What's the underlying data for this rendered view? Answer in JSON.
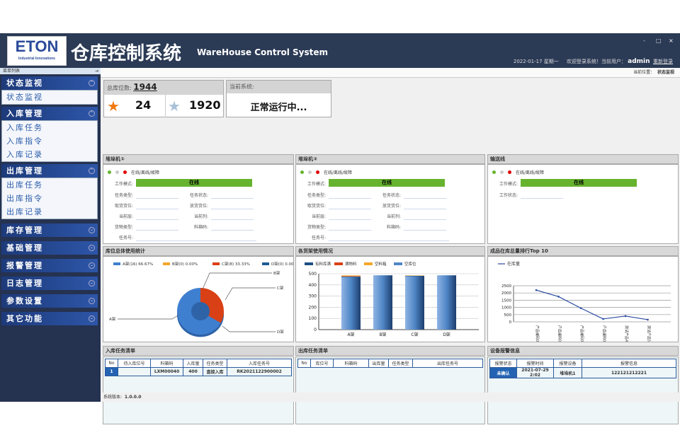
{
  "header": {
    "logo": "ETON",
    "logo_sub": "Industrial Innovations",
    "title": "仓库控制系统",
    "subtitle": "WareHouse Control System",
    "minimize": "-",
    "maximize": "□",
    "close": "×",
    "date": "2022-01-17 星期一",
    "welcome": "欢迎登录系统！当前用户：",
    "user": "admin",
    "relogin": "重新登录"
  },
  "sidebar": {
    "header": "菜单列表",
    "pin": "⇥",
    "groups": [
      {
        "label": "状态监视",
        "expanded": true,
        "items": [
          "状态监视"
        ]
      },
      {
        "label": "入库管理",
        "expanded": true,
        "items": [
          "入库任务",
          "入库指令",
          "入库记录"
        ]
      },
      {
        "label": "出库管理",
        "expanded": true,
        "items": [
          "出库任务",
          "出库指令",
          "出库记录"
        ]
      },
      {
        "label": "库存管理",
        "expanded": false,
        "items": []
      },
      {
        "label": "基础管理",
        "expanded": false,
        "items": []
      },
      {
        "label": "报警管理",
        "expanded": false,
        "items": []
      },
      {
        "label": "日志管理",
        "expanded": false,
        "items": []
      },
      {
        "label": "参数设置",
        "expanded": false,
        "items": []
      },
      {
        "label": "其它功能",
        "expanded": false,
        "items": []
      }
    ]
  },
  "breadcrumb": {
    "label": "当前位置：",
    "value": "状态监视"
  },
  "stats": {
    "total_label": "总库位数:",
    "total": "1944",
    "used": "24",
    "free": "1920",
    "system_label": "当前系统:",
    "system_status": "正常运行中..."
  },
  "legend_status": "在线/离线/故障",
  "colors": {
    "online": "#66b32e",
    "offline": "#cccccc",
    "fault": "#e00000",
    "header": "#2b3a55",
    "accent": "#2463b3"
  },
  "stacker1": {
    "title": "堆垛机①",
    "mode_label": "工作模式:",
    "mode": "在线",
    "fields": [
      "任务类型:",
      "任务状态:",
      "取货货位:",
      "放货货位:",
      "当前层:",
      "当前列:",
      "货物类型:",
      "料箱码:",
      "任务号:"
    ]
  },
  "stacker2": {
    "title": "堆垛机②",
    "mode_label": "工作模式:",
    "mode": "在线",
    "fields": [
      "任务类型:",
      "任务状态:",
      "取货货位:",
      "放货货位:",
      "当前层:",
      "当前列:",
      "货物类型:",
      "料箱码:",
      "任务号:"
    ]
  },
  "conveyor": {
    "title": "输送线",
    "mode_label": "工作模式:",
    "mode": "在线",
    "state_label": "工作状态:"
  },
  "chart_data": [
    {
      "type": "pie",
      "title": "库位总体使用统计",
      "donut": true,
      "categories": [
        "A架",
        "B架",
        "C架",
        "D架"
      ],
      "values": [
        16,
        0,
        8,
        0
      ],
      "legend": [
        "A架(16) 66.67%",
        "B架(0) 0.00%",
        "C架(8) 33.33%",
        "D架(0) 0.00%"
      ],
      "colors": [
        "#3f7fcf",
        "#f4a62a",
        "#d94015",
        "#1e5c95"
      ],
      "legend_position": "top"
    },
    {
      "type": "bar",
      "stacked": true,
      "title": "各货架使用情况",
      "categories": [
        "A架",
        "B架",
        "C架",
        "D架"
      ],
      "series": [
        {
          "name": "有料库满",
          "values": [
            5,
            0,
            4,
            0
          ],
          "color": "#1e4f85"
        },
        {
          "name": "满物料",
          "values": [
            4,
            0,
            0,
            0
          ],
          "color": "#d94015"
        },
        {
          "name": "空料箱",
          "values": [
            6,
            0,
            3,
            0
          ],
          "color": "#f4a62a"
        },
        {
          "name": "空库位",
          "values": [
            470,
            486,
            478,
            486
          ],
          "color": "#4f86c6"
        }
      ],
      "ylim": [
        0,
        500
      ],
      "yticks": [
        0,
        100,
        200,
        300,
        400,
        500
      ],
      "legend_position": "top"
    },
    {
      "type": "line",
      "title": "成品在库总量排行Top 10",
      "categories": [
        "产品编码00001",
        "产品编码00002",
        "产品编码00003",
        "产品编码00004",
        "测试产品4",
        "测试产品5"
      ],
      "series": [
        {
          "name": "在库量",
          "values": [
            2200,
            1750,
            950,
            200,
            400,
            150
          ],
          "color": "#2a4aa0"
        }
      ],
      "ylim": [
        0,
        2500
      ],
      "yticks": [
        0,
        500,
        1000,
        1500,
        2000,
        2500
      ],
      "grid": true,
      "legend_position": "top-left"
    }
  ],
  "inbound": {
    "title": "入库任务清单",
    "columns": [
      "No",
      "待入库位号",
      "料箱码",
      "入库量",
      "任务类型",
      "入库任务号"
    ],
    "rows": [
      [
        "1",
        "",
        "LXM00040",
        "400",
        "直接入库",
        "RK2021122900002"
      ]
    ]
  },
  "outbound": {
    "title": "出库任务清单",
    "columns": [
      "No",
      "库位号",
      "料箱码",
      "出库量",
      "任务类型",
      "出库任务号"
    ],
    "rows": []
  },
  "alarms": {
    "title": "设备报警信息",
    "columns": [
      "报警状态",
      "报警时间",
      "报警设备",
      "报警信息"
    ],
    "rows": [
      [
        "未确认",
        "2021-07-29 2:02",
        "堆垛机1",
        "122121212221"
      ]
    ]
  },
  "status": {
    "version_label": "系统版本:",
    "version": "1.0.0.0"
  }
}
